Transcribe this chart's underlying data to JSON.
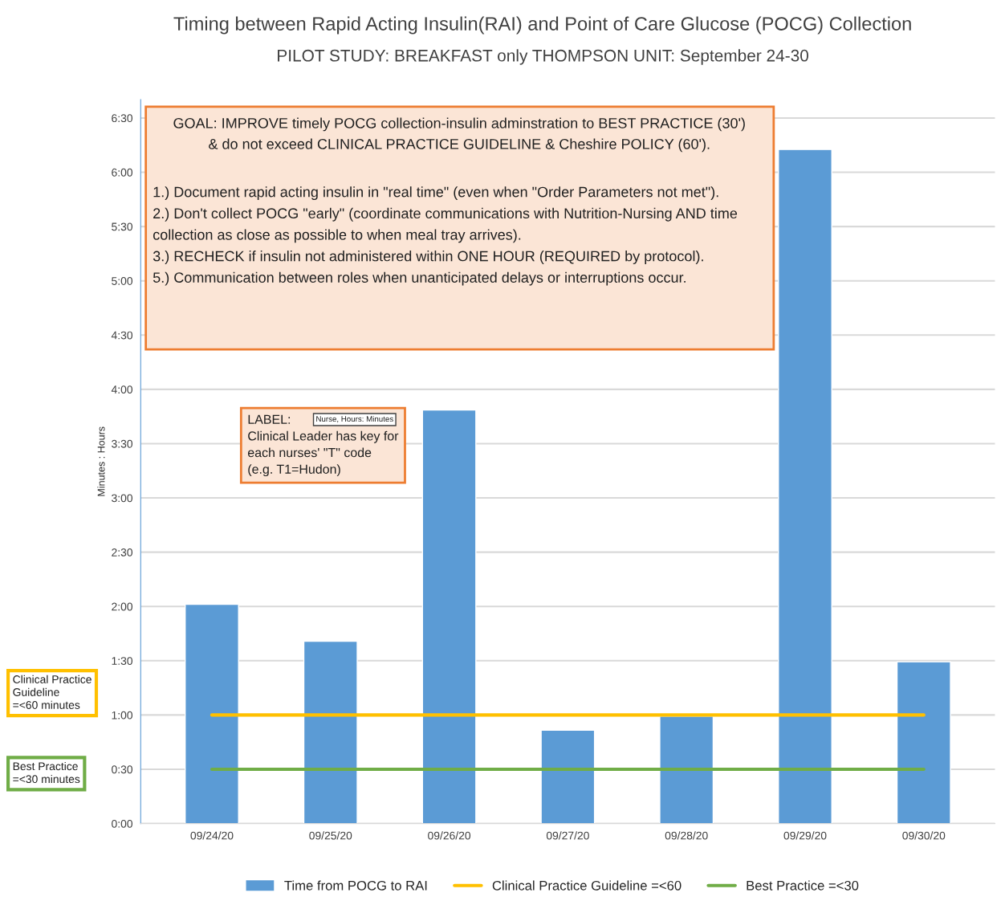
{
  "chart_data": {
    "type": "bar",
    "title": "Timing between Rapid Acting Insulin(RAI) and Point of Care Glucose (POCG) Collection",
    "subtitle": "PILOT STUDY: BREAKFAST only THOMPSON UNIT: September 24-30",
    "ylabel": "Minutes : Hours",
    "categories": [
      "09/24/20",
      "09/25/20",
      "09/26/20",
      "09/27/20",
      "09/28/20",
      "09/29/20",
      "09/30/20"
    ],
    "series": [
      {
        "name": "Time from POCG to RAI",
        "color": "#5b9bd5",
        "values": [
          2.02,
          1.68,
          3.81,
          0.86,
          0.99,
          6.21,
          1.49
        ]
      },
      {
        "name": "Clinical Practice Guideline =<60",
        "type": "line",
        "color": "#ffc000",
        "values": [
          1,
          1,
          1,
          1,
          1,
          1,
          1
        ]
      },
      {
        "name": "Best Practice =<30",
        "type": "line",
        "color": "#70ad47",
        "values": [
          0.5,
          0.5,
          0.5,
          0.5,
          0.5,
          0.5,
          0.5
        ]
      }
    ],
    "ylim": [
      0,
      6.67
    ],
    "yticks": [
      {
        "value": 0,
        "label": "0:00"
      },
      {
        "value": 0.5,
        "label": "0:30"
      },
      {
        "value": 1,
        "label": "1:00"
      },
      {
        "value": 1.5,
        "label": "1:30"
      },
      {
        "value": 2,
        "label": "2:00"
      },
      {
        "value": 2.5,
        "label": "2:30"
      },
      {
        "value": 3,
        "label": "3:00"
      },
      {
        "value": 3.5,
        "label": "3:30"
      },
      {
        "value": 4,
        "label": "4:00"
      },
      {
        "value": 4.5,
        "label": "4:30"
      },
      {
        "value": 5,
        "label": "5:00"
      },
      {
        "value": 5.5,
        "label": "5:30"
      },
      {
        "value": 6,
        "label": "6:00"
      },
      {
        "value": 6.5,
        "label": "6:30"
      }
    ],
    "grid": "y",
    "legend": "bottom",
    "marker": "none",
    "annotations": [
      "GOAL: IMPROVE timely POCG collection-insulin adminstration to BEST PRACTICE (30')\n& do not exceed CLINICAL PRACTICE GUIDELINE & Cheshire POLICY (60').",
      "1.) Document rapid acting insulin in \"real time\" (even when \"Order Parameters not met\").\n2.) Don't collect POCG \"early\" (coordinate communications with Nutrition-Nursing AND time\ncollection as close as possible to when meal tray arrives).\n3.) RECHECK if insulin not administered within ONE HOUR (REQUIRED by protocol).\n5.) Communication between roles when unanticipated delays or interruptions occur.",
      "LABEL:\nClinical Leader has key for\neach nurses' \"T\" code\n(e.g. T1=Hudon)",
      "Nurse, Hours: Minutes",
      "Clinical Practice\nGuideline\n=<60 minutes",
      "Best Practice\n=<30 minutes"
    ]
  }
}
